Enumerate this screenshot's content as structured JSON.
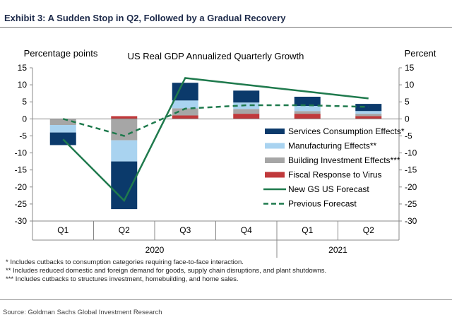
{
  "header": {
    "title": "Exhibit 3: A Sudden Stop in Q2, Followed by a Gradual Recovery"
  },
  "chart_data": {
    "type": "bar",
    "title": "US Real GDP Annualized Quarterly Growth",
    "ylabel_left": "Percentage points",
    "ylabel_right": "Percent",
    "ylim": [
      -30,
      15
    ],
    "yticks": [
      15,
      10,
      5,
      0,
      -5,
      -10,
      -15,
      -20,
      -25,
      -30
    ],
    "categories": [
      "Q1",
      "Q2",
      "Q3",
      "Q4",
      "Q1",
      "Q2"
    ],
    "years": [
      {
        "label": "2020",
        "span": [
          0,
          3
        ]
      },
      {
        "label": "2021",
        "span": [
          4,
          5
        ]
      }
    ],
    "stacked_series": [
      {
        "name": "Fiscal Response to Virus",
        "color": "#c0393b",
        "values": [
          0,
          0.8,
          1.0,
          1.5,
          1.5,
          0.8
        ]
      },
      {
        "name": "Building Investment Effects***",
        "color": "#a6a6a6",
        "values": [
          -1.8,
          -6.3,
          2.1,
          1.4,
          0.8,
          0.7
        ]
      },
      {
        "name": "Manufacturing Effects**",
        "color": "#a9d3f0",
        "values": [
          -2.2,
          -6.2,
          2.3,
          1.9,
          1.5,
          0.8
        ]
      },
      {
        "name": "Services Consumption Effects*",
        "color": "#0b3a6b",
        "values": [
          -3.7,
          -14.0,
          5.2,
          3.5,
          2.7,
          2.1
        ]
      }
    ],
    "line_series": [
      {
        "name": "New GS US Forecast",
        "color": "#1f7a4d",
        "style": "solid",
        "values": [
          -6,
          -24,
          12,
          10,
          8,
          6
        ]
      },
      {
        "name": "Previous Forecast",
        "color": "#1f7a4d",
        "style": "dashed",
        "values": [
          0,
          -5,
          3,
          4,
          4,
          3.5
        ]
      }
    ],
    "legend_order": [
      "Services Consumption Effects*",
      "Manufacturing Effects**",
      "Building Investment Effects***",
      "Fiscal Response to Virus",
      "New GS US Forecast",
      "Previous Forecast"
    ],
    "legend_position": "bottom-right-inside",
    "grid": false
  },
  "footnotes": [
    "* Includes cutbacks to consumption categories requiring face-to-face interaction.",
    "** Includes reduced domestic and foreign demand for goods, supply chain disruptions, and plant shutdowns.",
    "*** Includes cutbacks to structures investment, homebuilding, and home sales."
  ],
  "source": "Source: Goldman Sachs Global Investment Research"
}
